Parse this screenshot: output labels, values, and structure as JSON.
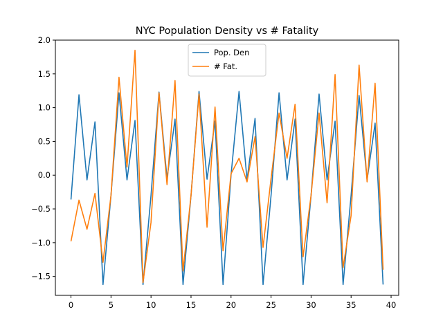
{
  "chart_data": {
    "type": "line",
    "title": "NYC Population Density vs # Fatality",
    "xlabel": "",
    "ylabel": "",
    "xlim": [
      -1.95,
      40.95
    ],
    "ylim": [
      -1.78,
      2.0
    ],
    "xticks": [
      0,
      5,
      10,
      15,
      20,
      25,
      30,
      35,
      40
    ],
    "xtick_labels": [
      "0",
      "5",
      "10",
      "15",
      "20",
      "25",
      "30",
      "35",
      "40"
    ],
    "yticks": [
      -1.5,
      -1.0,
      -0.5,
      0.0,
      0.5,
      1.0,
      1.5,
      2.0
    ],
    "ytick_labels": [
      "−1.5",
      "−1.0",
      "−0.5",
      "0.0",
      "0.5",
      "1.0",
      "1.5",
      "2.0"
    ],
    "grid": false,
    "legend_position": "top-center",
    "x": [
      0,
      1,
      2,
      3,
      4,
      5,
      6,
      7,
      8,
      9,
      10,
      11,
      12,
      13,
      14,
      15,
      16,
      17,
      18,
      19,
      20,
      21,
      22,
      23,
      24,
      25,
      26,
      27,
      28,
      29,
      30,
      31,
      32,
      33,
      34,
      35,
      36,
      37,
      38,
      39
    ],
    "series": [
      {
        "name": "Pop. Den",
        "color": "#1f77b4",
        "values": [
          -0.36,
          1.19,
          -0.07,
          0.79,
          -1.62,
          -0.3,
          1.22,
          -0.07,
          0.81,
          -1.62,
          -0.3,
          1.23,
          -0.05,
          0.83,
          -1.62,
          -0.3,
          1.24,
          -0.06,
          0.8,
          -1.62,
          0.0,
          1.24,
          -0.07,
          0.84,
          -1.62,
          -0.3,
          1.22,
          -0.07,
          0.83,
          -1.62,
          -0.3,
          1.2,
          -0.07,
          0.8,
          -1.62,
          -0.3,
          1.18,
          -0.07,
          0.77,
          -1.62
        ]
      },
      {
        "name": "# Fat.",
        "color": "#ff7f0e",
        "values": [
          -0.98,
          -0.37,
          -0.8,
          -0.27,
          -1.29,
          -0.3,
          1.45,
          0.12,
          1.85,
          -1.59,
          -0.7,
          1.22,
          -0.14,
          1.4,
          -1.42,
          -0.3,
          1.2,
          -0.77,
          1.01,
          -1.12,
          0.02,
          0.25,
          -0.1,
          0.57,
          -1.07,
          -0.05,
          0.92,
          0.25,
          1.05,
          -1.21,
          -0.3,
          0.92,
          -0.41,
          1.49,
          -1.37,
          -0.6,
          1.63,
          -0.1,
          1.36,
          -1.4
        ]
      }
    ]
  }
}
